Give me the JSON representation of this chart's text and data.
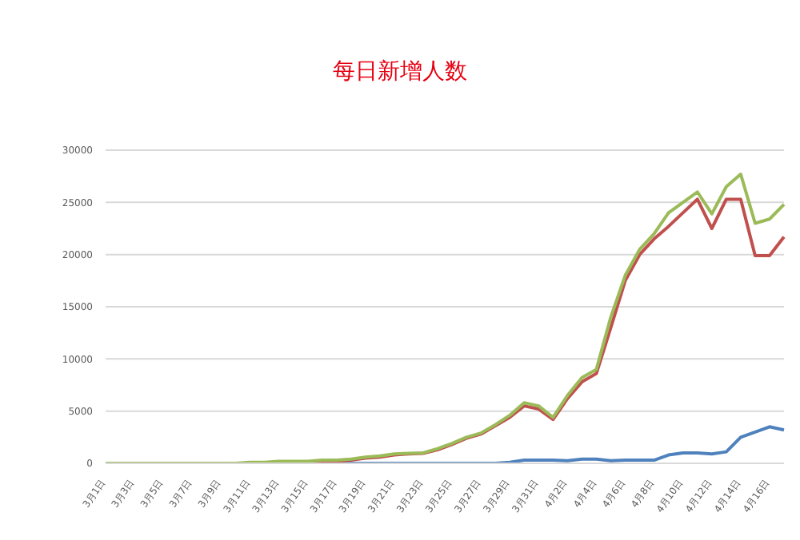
{
  "chart_data": {
    "type": "line",
    "title": "每日新增人数",
    "categories": [
      "3月1日",
      null,
      "3月3日",
      null,
      "3月5日",
      null,
      "3月7日",
      null,
      "3月9日",
      null,
      "3月11日",
      null,
      "3月13日",
      null,
      "3月15日",
      null,
      "3月17日",
      null,
      "3月19日",
      null,
      "3月21日",
      null,
      "3月23日",
      null,
      "3月25日",
      null,
      "3月27日",
      null,
      "3月29日",
      null,
      "3月31日",
      null,
      "4月2日",
      null,
      "4月4日",
      null,
      "4月6日",
      null,
      "4月8日",
      null,
      "4月10日",
      null,
      "4月12日",
      null,
      "4月14日",
      null,
      "4月16日",
      null
    ],
    "series": [
      {
        "color": "#4f81bd",
        "values": [
          null,
          null,
          null,
          null,
          null,
          null,
          null,
          null,
          null,
          null,
          null,
          null,
          null,
          null,
          null,
          0,
          0,
          0,
          0,
          0,
          0,
          0,
          0,
          0,
          0,
          0,
          0,
          0,
          100,
          300,
          300,
          300,
          250,
          400,
          400,
          250,
          300,
          300,
          300,
          800,
          1000,
          1000,
          900,
          1100,
          2500,
          3000,
          3500,
          3200
        ]
      },
      {
        "color": "#c0504d",
        "values": [
          null,
          null,
          null,
          null,
          null,
          null,
          null,
          null,
          null,
          null,
          null,
          null,
          100,
          100,
          100,
          200,
          200,
          300,
          500,
          600,
          800,
          900,
          950,
          1300,
          1800,
          2400,
          2800,
          3600,
          4400,
          5500,
          5200,
          4200,
          6200,
          7800,
          8600,
          13000,
          17500,
          20000,
          21500,
          22700,
          24000,
          25300,
          22500,
          25300,
          25300,
          19900,
          19900,
          21700
        ]
      },
      {
        "color": "#9bbb59",
        "values": [
          0,
          0,
          0,
          0,
          0,
          0,
          0,
          0,
          0,
          0,
          100,
          100,
          200,
          200,
          200,
          300,
          300,
          400,
          600,
          700,
          900,
          950,
          1000,
          1400,
          1900,
          2500,
          2900,
          3700,
          4600,
          5800,
          5500,
          4400,
          6500,
          8200,
          9000,
          14000,
          18000,
          20500,
          22000,
          24000,
          25000,
          26000,
          23900,
          26500,
          27700,
          23000,
          23400,
          24800
        ]
      }
    ],
    "ylim": [
      0,
      30000
    ],
    "yticks": [
      0,
      5000,
      10000,
      15000,
      20000,
      25000,
      30000
    ],
    "grid": "y",
    "marker": "none",
    "line_style": "solid"
  }
}
